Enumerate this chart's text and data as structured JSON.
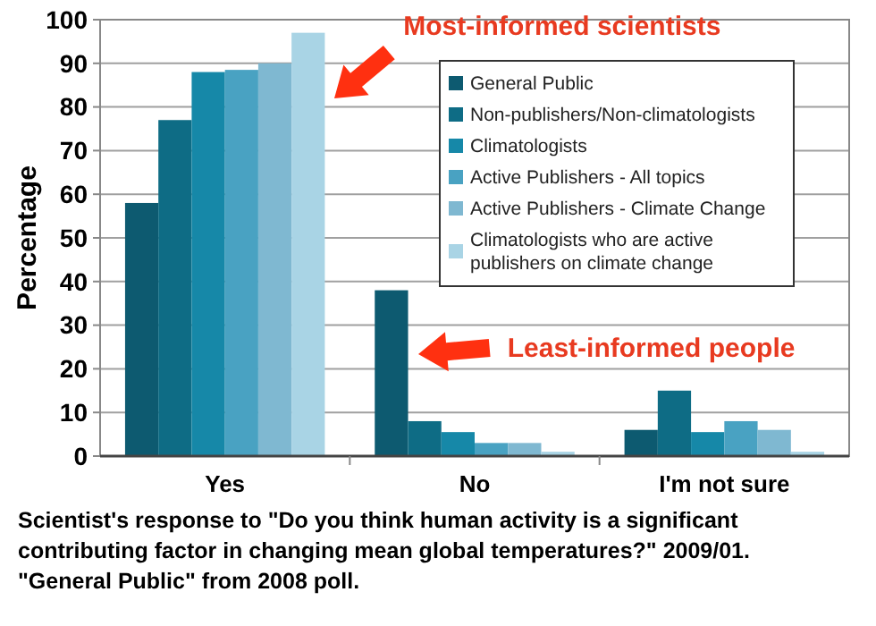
{
  "chart_data": {
    "type": "bar",
    "ylabel": "Percentage",
    "categories": [
      "Yes",
      "No",
      "I'm not sure"
    ],
    "series": [
      {
        "name": "General Public",
        "color": "#0d5a70",
        "values": [
          58,
          38,
          6
        ]
      },
      {
        "name": "Non-publishers/Non-climatologists",
        "color": "#0e6c85",
        "values": [
          77,
          8,
          15
        ]
      },
      {
        "name": "Climatologists",
        "color": "#1688a8",
        "values": [
          88,
          5.5,
          5.5
        ]
      },
      {
        "name": "Active Publishers - All topics",
        "color": "#49a2c2",
        "values": [
          88.5,
          3,
          8
        ]
      },
      {
        "name": "Active Publishers - Climate Change",
        "color": "#7fb8d1",
        "values": [
          90,
          3,
          6
        ]
      },
      {
        "name": "Climatologists who are active publishers on climate change",
        "color": "#a9d4e5",
        "values": [
          97,
          1,
          1
        ]
      }
    ],
    "ylim": [
      0,
      100
    ],
    "yticks": [
      0,
      10,
      20,
      30,
      40,
      50,
      60,
      70,
      80,
      90,
      100
    ],
    "grid": "y",
    "legend": "top right",
    "annotations": [
      "Most-informed scientists",
      "Least-informed people",
      "Scientist's response to \"Do you think human activity is a significant contributing factor in changing mean global temperatures?\" 2009/01. \"General Public\" from 2008 poll."
    ]
  }
}
